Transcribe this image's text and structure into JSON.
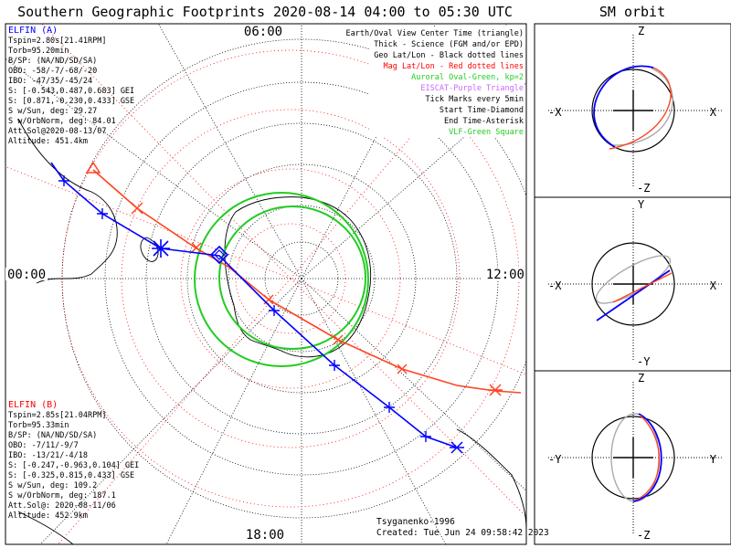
{
  "header": {
    "title": "Southern Geographic Footprints 2020-08-14 04:00 to 05:30 UTC",
    "orbit_title": "SM orbit"
  },
  "map": {
    "clock_labels": {
      "top": "06:00",
      "left": "00:00",
      "right": "12:00",
      "bottom": "18:00"
    }
  },
  "legend": [
    {
      "text": "Earth/Oval View Center Time (triangle)",
      "color": "#000000"
    },
    {
      "text": "Thick - Science (FGM and/or EPD)",
      "color": "#000000"
    },
    {
      "text": "Geo Lat/Lon - Black dotted lines",
      "color": "#000000"
    },
    {
      "text": "Mag Lat/Lon - Red dotted lines",
      "color": "#ff0000"
    },
    {
      "text": "Auroral Oval-Green, kp=2",
      "color": "#22cc22"
    },
    {
      "text": "EISCAT-Purple Triangle",
      "color": "#cc66ff"
    },
    {
      "text": "Tick Marks every 5min",
      "color": "#000000"
    },
    {
      "text": "Start Time-Diamond",
      "color": "#000000"
    },
    {
      "text": "End Time-Asterisk",
      "color": "#000000"
    },
    {
      "text": "VLF-Green Square",
      "color": "#22cc22"
    }
  ],
  "elfin_a": {
    "title": "ELFIN (A)",
    "color": "#0000ff",
    "lines": [
      "Tspin=2.80s[21.41RPM]",
      "Torb=95.20min",
      "B/SP: (NA/ND/SD/SA)",
      "OBO: -58/-7/-68/-20",
      "IBO: -47/35/-45/24",
      "S: [-0.543,0.487,0.683] GEI",
      "S: [0.871,-0.230,0.433] GSE",
      "S w/Sun, deg: 29.27",
      "S w/OrbNorm, deg: 84.01",
      "Att.Sol@2020-08-13/07",
      "Altitude: 451.4km"
    ]
  },
  "elfin_b": {
    "title": "ELFIN (B)",
    "color": "#ff0000",
    "lines": [
      "Tspin=2.85s[21.04RPM]",
      "Torb=95.33min",
      "B/SP: (NA/ND/SD/SA)",
      "OBO: -7/11/-9/7",
      "IBO: -13/21/-4/18",
      "S: [-0.247,-0.963,0.104] GEI",
      "S: [-0.325,0.815,0.433] GSE",
      "S w/Sun, deg: 109.2",
      "S w/OrbNorm, deg: 187.1",
      "Att.Sol@: 2020-08-11/06",
      "Altitude: 452.9km"
    ]
  },
  "footer": {
    "model": "Tsyganenko-1996",
    "created": "Created: Tue Jun 24 09:58:42 2023"
  },
  "orbit_panels": [
    {
      "top": "Z",
      "bottom": "-Z",
      "left": "-X",
      "right": "X"
    },
    {
      "top": "Y",
      "bottom": "-Y",
      "left": "-X",
      "right": "X"
    },
    {
      "top": "Z",
      "bottom": "-Z",
      "left": "-Y",
      "right": "Y"
    }
  ],
  "colors": {
    "elfin_a": "#0000ff",
    "elfin_b": "#ff4422",
    "oval": "#22cc22",
    "geo_grid": "#000000",
    "mag_grid": "#ff0000",
    "orbit_trace": "#aaaaaa"
  }
}
